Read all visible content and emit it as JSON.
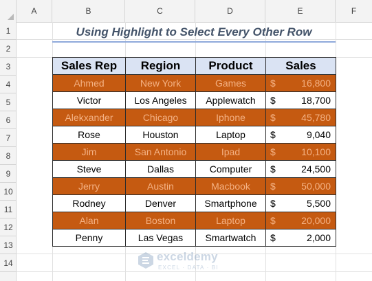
{
  "columns": [
    "A",
    "B",
    "C",
    "D",
    "E",
    "F"
  ],
  "rows": [
    "1",
    "2",
    "3",
    "4",
    "5",
    "6",
    "7",
    "8",
    "9",
    "10",
    "11",
    "12",
    "13",
    "14"
  ],
  "title": "Using Highlight to Select Every Other Row",
  "table": {
    "headers": [
      "Sales Rep",
      "Region",
      "Product",
      "Sales"
    ],
    "currency": "$",
    "rows": [
      {
        "rep": "Ahmed",
        "region": "New York",
        "product": "Games",
        "sales": "16,800",
        "highlighted": true
      },
      {
        "rep": "Victor",
        "region": "Los Angeles",
        "product": "Applewatch",
        "sales": "18,700",
        "highlighted": false
      },
      {
        "rep": "Alekxander",
        "region": "Chicago",
        "product": "Iphone",
        "sales": "45,780",
        "highlighted": true
      },
      {
        "rep": "Rose",
        "region": "Houston",
        "product": "Laptop",
        "sales": "9,040",
        "highlighted": false
      },
      {
        "rep": "Jim",
        "region": "San Antonio",
        "product": "Ipad",
        "sales": "10,100",
        "highlighted": true
      },
      {
        "rep": "Steve",
        "region": "Dallas",
        "product": "Computer",
        "sales": "24,500",
        "highlighted": false
      },
      {
        "rep": "Jerry",
        "region": "Austin",
        "product": "Macbook",
        "sales": "50,000",
        "highlighted": true
      },
      {
        "rep": "Rodney",
        "region": "Denver",
        "product": "Smartphone",
        "sales": "5,500",
        "highlighted": false
      },
      {
        "rep": "Alan",
        "region": "Boston",
        "product": "Laptop",
        "sales": "20,000",
        "highlighted": true
      },
      {
        "rep": "Penny",
        "region": "Las Vegas",
        "product": "Smartwatch",
        "sales": "2,000",
        "highlighted": false
      }
    ]
  },
  "colors": {
    "highlight_fill": "#c55a11",
    "highlight_text": "#f4b183",
    "header_fill": "#dae3f3",
    "title_text": "#44546a"
  },
  "watermark": {
    "name": "exceldemy",
    "tagline": "EXCEL · DATA · BI"
  }
}
